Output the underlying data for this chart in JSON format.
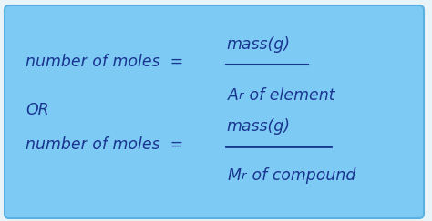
{
  "bg_color": "#e8f4f8",
  "box_color": "#7dcbf5",
  "box_edge_color": "#5ab0e0",
  "text_color": "#1a3590",
  "figsize": [
    4.74,
    2.43
  ],
  "dpi": 100,
  "font_size": 12.5,
  "font_size_small": 11.5,
  "line1_left": "number of moles  =",
  "line1_num": "mass(g)",
  "line1_den": "A, of element",
  "or_text": "OR",
  "line2_left": "number of moles  =",
  "line2_num": "mass(g)",
  "line2_den": "M, of compound"
}
